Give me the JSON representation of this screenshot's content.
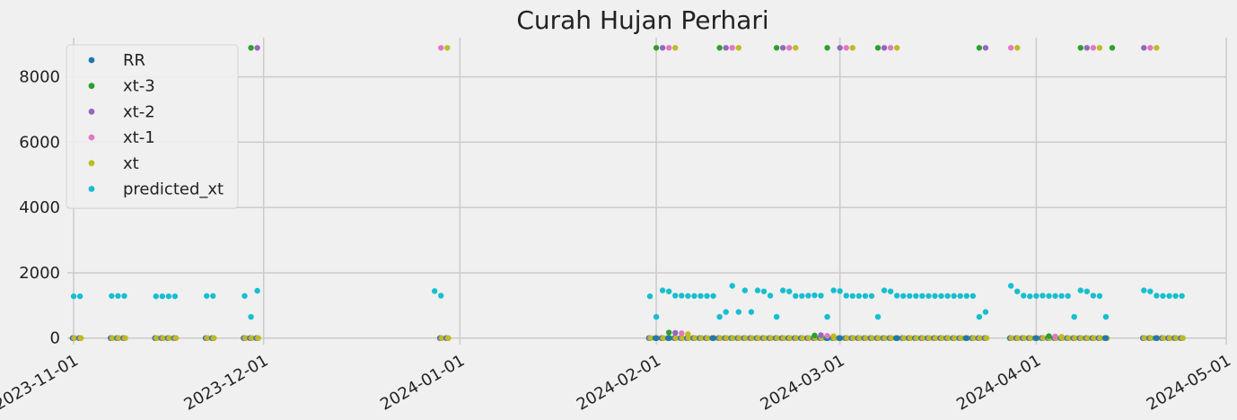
{
  "chart_data": {
    "type": "scatter",
    "title": "Curah Hujan Perhari",
    "xlabel": "",
    "ylabel": "",
    "x_axis": "date",
    "xlim": [
      "2023-10-31",
      "2024-05-01"
    ],
    "ylim": [
      -200,
      9200
    ],
    "x_ticks": [
      "2023-11-01",
      "2023-12-01",
      "2024-01-01",
      "2024-02-01",
      "2024-03-01",
      "2024-04-01",
      "2024-05-01"
    ],
    "y_ticks": [
      0,
      2000,
      4000,
      6000,
      8000
    ],
    "grid": true,
    "legend_position": "top-left",
    "series": [
      {
        "name": "RR",
        "color": "#1f77b4",
        "points": [
          [
            "2024-02-01",
            0
          ],
          [
            "2024-02-03",
            0
          ],
          [
            "2024-02-10",
            0
          ],
          [
            "2024-02-28",
            0
          ],
          [
            "2024-03-01",
            0
          ],
          [
            "2024-03-10",
            0
          ],
          [
            "2024-03-21",
            0
          ],
          [
            "2024-04-01",
            0
          ],
          [
            "2024-04-12",
            0
          ],
          [
            "2024-04-20",
            0
          ]
        ]
      },
      {
        "name": "xt-3",
        "color": "#2ca02c",
        "points": [
          [
            "2023-11-29",
            8890
          ],
          [
            "2024-02-01",
            8890
          ],
          [
            "2024-02-11",
            8890
          ],
          [
            "2024-02-20",
            8890
          ],
          [
            "2024-02-28",
            8890
          ],
          [
            "2024-03-07",
            8890
          ],
          [
            "2024-03-23",
            8890
          ],
          [
            "2024-04-08",
            8890
          ],
          [
            "2024-04-13",
            8890
          ],
          [
            "2024-02-03",
            170
          ],
          [
            "2024-02-26",
            80
          ],
          [
            "2024-04-03",
            60
          ]
        ]
      },
      {
        "name": "xt-2",
        "color": "#9467bd",
        "points": [
          [
            "2023-11-30",
            8890
          ],
          [
            "2024-02-02",
            8890
          ],
          [
            "2024-02-12",
            8890
          ],
          [
            "2024-02-21",
            8890
          ],
          [
            "2024-03-01",
            8890
          ],
          [
            "2024-03-08",
            8890
          ],
          [
            "2024-03-24",
            8890
          ],
          [
            "2024-04-09",
            8890
          ],
          [
            "2024-04-18",
            8890
          ],
          [
            "2024-02-04",
            160
          ],
          [
            "2024-02-27",
            90
          ]
        ]
      },
      {
        "name": "xt-1",
        "color": "#e377c2",
        "points": [
          [
            "2023-12-29",
            8890
          ],
          [
            "2024-02-03",
            8890
          ],
          [
            "2024-02-13",
            8890
          ],
          [
            "2024-02-22",
            8890
          ],
          [
            "2024-03-02",
            8890
          ],
          [
            "2024-03-09",
            8890
          ],
          [
            "2024-03-28",
            8890
          ],
          [
            "2024-04-10",
            8890
          ],
          [
            "2024-04-19",
            8890
          ],
          [
            "2024-02-05",
            150
          ],
          [
            "2024-02-28",
            70
          ],
          [
            "2024-04-04",
            50
          ]
        ]
      },
      {
        "name": "xt",
        "color": "#bcbd22",
        "points": [
          [
            "2023-12-30",
            8890
          ],
          [
            "2024-02-04",
            8890
          ],
          [
            "2024-02-14",
            8890
          ],
          [
            "2024-02-23",
            8890
          ],
          [
            "2024-03-03",
            8890
          ],
          [
            "2024-03-10",
            8890
          ],
          [
            "2024-03-29",
            8890
          ],
          [
            "2024-04-11",
            8890
          ],
          [
            "2024-04-20",
            8890
          ],
          [
            "2024-02-06",
            120
          ],
          [
            "2024-02-29",
            60
          ],
          [
            "2024-04-05",
            40
          ]
        ]
      },
      {
        "name": "predicted_xt",
        "color": "#17becf",
        "points": [
          [
            "2023-11-01",
            1280
          ],
          [
            "2023-11-02",
            1280
          ],
          [
            "2023-11-07",
            1290
          ],
          [
            "2023-11-08",
            1290
          ],
          [
            "2023-11-09",
            1290
          ],
          [
            "2023-11-14",
            1280
          ],
          [
            "2023-11-15",
            1280
          ],
          [
            "2023-11-16",
            1280
          ],
          [
            "2023-11-17",
            1280
          ],
          [
            "2023-11-22",
            1290
          ],
          [
            "2023-11-23",
            1290
          ],
          [
            "2023-11-28",
            1290
          ],
          [
            "2023-11-29",
            650
          ],
          [
            "2023-11-30",
            1450
          ],
          [
            "2023-12-28",
            1440
          ],
          [
            "2023-12-29",
            1300
          ],
          [
            "2024-01-31",
            1280
          ],
          [
            "2024-02-01",
            650
          ],
          [
            "2024-02-02",
            1460
          ],
          [
            "2024-02-03",
            1430
          ],
          [
            "2024-02-04",
            1300
          ],
          [
            "2024-02-05",
            1300
          ],
          [
            "2024-02-06",
            1290
          ],
          [
            "2024-02-07",
            1290
          ],
          [
            "2024-02-08",
            1290
          ],
          [
            "2024-02-09",
            1290
          ],
          [
            "2024-02-10",
            1290
          ],
          [
            "2024-02-11",
            650
          ],
          [
            "2024-02-12",
            800
          ],
          [
            "2024-02-13",
            1600
          ],
          [
            "2024-02-14",
            800
          ],
          [
            "2024-02-15",
            1460
          ],
          [
            "2024-02-16",
            800
          ],
          [
            "2024-02-17",
            1460
          ],
          [
            "2024-02-18",
            1430
          ],
          [
            "2024-02-19",
            1300
          ],
          [
            "2024-02-20",
            650
          ],
          [
            "2024-02-21",
            1460
          ],
          [
            "2024-02-22",
            1430
          ],
          [
            "2024-02-23",
            1290
          ],
          [
            "2024-02-24",
            1290
          ],
          [
            "2024-02-25",
            1300
          ],
          [
            "2024-02-26",
            1310
          ],
          [
            "2024-02-27",
            1300
          ],
          [
            "2024-02-28",
            650
          ],
          [
            "2024-02-29",
            1460
          ],
          [
            "2024-03-01",
            1440
          ],
          [
            "2024-03-02",
            1300
          ],
          [
            "2024-03-03",
            1290
          ],
          [
            "2024-03-04",
            1290
          ],
          [
            "2024-03-05",
            1290
          ],
          [
            "2024-03-06",
            1290
          ],
          [
            "2024-03-07",
            650
          ],
          [
            "2024-03-08",
            1460
          ],
          [
            "2024-03-09",
            1430
          ],
          [
            "2024-03-10",
            1300
          ],
          [
            "2024-03-11",
            1290
          ],
          [
            "2024-03-12",
            1290
          ],
          [
            "2024-03-13",
            1290
          ],
          [
            "2024-03-14",
            1290
          ],
          [
            "2024-03-15",
            1290
          ],
          [
            "2024-03-16",
            1290
          ],
          [
            "2024-03-17",
            1290
          ],
          [
            "2024-03-18",
            1290
          ],
          [
            "2024-03-19",
            1290
          ],
          [
            "2024-03-20",
            1290
          ],
          [
            "2024-03-21",
            1290
          ],
          [
            "2024-03-22",
            1290
          ],
          [
            "2024-03-23",
            650
          ],
          [
            "2024-03-24",
            800
          ],
          [
            "2024-03-28",
            1600
          ],
          [
            "2024-03-29",
            1430
          ],
          [
            "2024-03-30",
            1300
          ],
          [
            "2024-03-31",
            1280
          ],
          [
            "2024-04-01",
            1290
          ],
          [
            "2024-04-02",
            1300
          ],
          [
            "2024-04-03",
            1290
          ],
          [
            "2024-04-04",
            1290
          ],
          [
            "2024-04-05",
            1290
          ],
          [
            "2024-04-06",
            1290
          ],
          [
            "2024-04-07",
            650
          ],
          [
            "2024-04-08",
            1460
          ],
          [
            "2024-04-09",
            1430
          ],
          [
            "2024-04-10",
            1300
          ],
          [
            "2024-04-11",
            1290
          ],
          [
            "2024-04-12",
            650
          ],
          [
            "2024-04-18",
            1460
          ],
          [
            "2024-04-19",
            1430
          ],
          [
            "2024-04-20",
            1300
          ],
          [
            "2024-04-21",
            1290
          ],
          [
            "2024-04-22",
            1290
          ],
          [
            "2024-04-23",
            1290
          ],
          [
            "2024-04-24",
            1290
          ]
        ]
      }
    ],
    "zero_dates": [
      "2023-11-01",
      "2023-11-02",
      "2023-11-07",
      "2023-11-08",
      "2023-11-09",
      "2023-11-14",
      "2023-11-15",
      "2023-11-16",
      "2023-11-17",
      "2023-11-22",
      "2023-11-23",
      "2023-11-28",
      "2023-11-29",
      "2023-11-30",
      "2023-12-29",
      "2023-12-30",
      "2024-01-31",
      "2024-02-01",
      "2024-02-02",
      "2024-02-03",
      "2024-02-04",
      "2024-02-05",
      "2024-02-06",
      "2024-02-07",
      "2024-02-08",
      "2024-02-09",
      "2024-02-10",
      "2024-02-11",
      "2024-02-12",
      "2024-02-13",
      "2024-02-14",
      "2024-02-15",
      "2024-02-16",
      "2024-02-17",
      "2024-02-18",
      "2024-02-19",
      "2024-02-20",
      "2024-02-21",
      "2024-02-22",
      "2024-02-23",
      "2024-02-24",
      "2024-02-25",
      "2024-02-26",
      "2024-02-27",
      "2024-02-28",
      "2024-02-29",
      "2024-03-01",
      "2024-03-02",
      "2024-03-03",
      "2024-03-04",
      "2024-03-05",
      "2024-03-06",
      "2024-03-07",
      "2024-03-08",
      "2024-03-09",
      "2024-03-10",
      "2024-03-11",
      "2024-03-12",
      "2024-03-13",
      "2024-03-14",
      "2024-03-15",
      "2024-03-16",
      "2024-03-17",
      "2024-03-18",
      "2024-03-19",
      "2024-03-20",
      "2024-03-21",
      "2024-03-22",
      "2024-03-23",
      "2024-03-24",
      "2024-03-28",
      "2024-03-29",
      "2024-03-30",
      "2024-03-31",
      "2024-04-01",
      "2024-04-02",
      "2024-04-03",
      "2024-04-04",
      "2024-04-05",
      "2024-04-06",
      "2024-04-07",
      "2024-04-08",
      "2024-04-09",
      "2024-04-10",
      "2024-04-11",
      "2024-04-12",
      "2024-04-18",
      "2024-04-19",
      "2024-04-20",
      "2024-04-21",
      "2024-04-22",
      "2024-04-23",
      "2024-04-24"
    ]
  }
}
